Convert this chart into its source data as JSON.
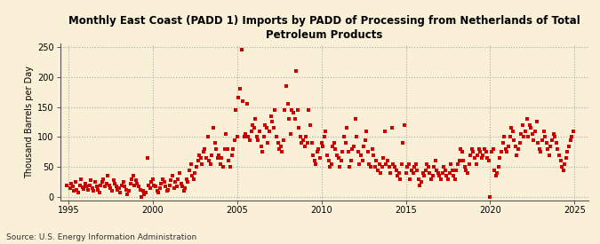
{
  "title": "Monthly East Coast (PADD 1) Imports by PADD of Processing from Netherlands of Total\nPetroleum Products",
  "ylabel": "Thousand Barrels per Day",
  "source": "Source: U.S. Energy Information Administration",
  "background_color": "#faf0d7",
  "plot_bg_color": "#faf0d7",
  "marker_color": "#cc0000",
  "grid_color": "#aaaaaa",
  "xlim": [
    1994.5,
    2025.8
  ],
  "ylim": [
    -5,
    255
  ],
  "yticks": [
    0,
    50,
    100,
    150,
    200,
    250
  ],
  "xticks": [
    1995,
    2000,
    2005,
    2010,
    2015,
    2020,
    2025
  ],
  "x_data": [
    1994.92,
    1995.08,
    1995.17,
    1995.25,
    1995.33,
    1995.42,
    1995.5,
    1995.58,
    1995.67,
    1995.75,
    1995.83,
    1995.92,
    1996.0,
    1996.08,
    1996.17,
    1996.25,
    1996.33,
    1996.42,
    1996.5,
    1996.58,
    1996.67,
    1996.75,
    1996.83,
    1996.92,
    1997.0,
    1997.08,
    1997.17,
    1997.25,
    1997.33,
    1997.42,
    1997.5,
    1997.58,
    1997.67,
    1997.75,
    1997.83,
    1997.92,
    1998.0,
    1998.08,
    1998.17,
    1998.25,
    1998.33,
    1998.42,
    1998.5,
    1998.58,
    1998.67,
    1998.75,
    1998.83,
    1998.92,
    1999.0,
    1999.08,
    1999.17,
    1999.25,
    1999.33,
    1999.42,
    1999.5,
    1999.58,
    1999.67,
    1999.75,
    1999.83,
    1999.92,
    2000.0,
    2000.08,
    2000.17,
    2000.25,
    2000.33,
    2000.42,
    2000.5,
    2000.58,
    2000.67,
    2000.75,
    2000.83,
    2000.92,
    2001.0,
    2001.08,
    2001.17,
    2001.25,
    2001.33,
    2001.42,
    2001.5,
    2001.58,
    2001.67,
    2001.75,
    2001.83,
    2001.92,
    2002.0,
    2002.08,
    2002.17,
    2002.25,
    2002.33,
    2002.42,
    2002.5,
    2002.58,
    2002.67,
    2002.75,
    2002.83,
    2002.92,
    2003.0,
    2003.08,
    2003.17,
    2003.25,
    2003.33,
    2003.42,
    2003.5,
    2003.58,
    2003.67,
    2003.75,
    2003.83,
    2003.92,
    2004.0,
    2004.08,
    2004.17,
    2004.25,
    2004.33,
    2004.42,
    2004.5,
    2004.58,
    2004.67,
    2004.75,
    2004.83,
    2004.92,
    2005.0,
    2005.08,
    2005.17,
    2005.25,
    2005.33,
    2005.42,
    2005.5,
    2005.58,
    2005.67,
    2005.75,
    2005.83,
    2005.92,
    2006.0,
    2006.08,
    2006.17,
    2006.25,
    2006.33,
    2006.42,
    2006.5,
    2006.58,
    2006.67,
    2006.75,
    2006.83,
    2006.92,
    2007.0,
    2007.08,
    2007.17,
    2007.25,
    2007.33,
    2007.42,
    2007.5,
    2007.58,
    2007.67,
    2007.75,
    2007.83,
    2007.92,
    2008.0,
    2008.08,
    2008.17,
    2008.25,
    2008.33,
    2008.42,
    2008.5,
    2008.58,
    2008.67,
    2008.75,
    2008.83,
    2008.92,
    2009.0,
    2009.08,
    2009.17,
    2009.25,
    2009.33,
    2009.42,
    2009.5,
    2009.58,
    2009.67,
    2009.75,
    2009.83,
    2009.92,
    2010.0,
    2010.08,
    2010.17,
    2010.25,
    2010.33,
    2010.42,
    2010.5,
    2010.58,
    2010.67,
    2010.75,
    2010.83,
    2010.92,
    2011.0,
    2011.08,
    2011.17,
    2011.25,
    2011.33,
    2011.42,
    2011.5,
    2011.58,
    2011.67,
    2011.75,
    2011.83,
    2011.92,
    2012.0,
    2012.08,
    2012.17,
    2012.25,
    2012.33,
    2012.42,
    2012.5,
    2012.58,
    2012.67,
    2012.75,
    2012.83,
    2012.92,
    2013.0,
    2013.08,
    2013.17,
    2013.25,
    2013.33,
    2013.42,
    2013.5,
    2013.58,
    2013.67,
    2013.75,
    2013.83,
    2013.92,
    2014.0,
    2014.08,
    2014.17,
    2014.25,
    2014.33,
    2014.42,
    2014.5,
    2014.58,
    2014.67,
    2014.75,
    2014.83,
    2014.92,
    2015.0,
    2015.08,
    2015.17,
    2015.25,
    2015.33,
    2015.42,
    2015.5,
    2015.58,
    2015.67,
    2015.75,
    2015.83,
    2015.92,
    2016.0,
    2016.08,
    2016.17,
    2016.25,
    2016.33,
    2016.42,
    2016.5,
    2016.58,
    2016.67,
    2016.75,
    2016.83,
    2016.92,
    2017.0,
    2017.08,
    2017.17,
    2017.25,
    2017.33,
    2017.42,
    2017.5,
    2017.58,
    2017.67,
    2017.75,
    2017.83,
    2017.92,
    2018.0,
    2018.08,
    2018.17,
    2018.25,
    2018.33,
    2018.42,
    2018.5,
    2018.58,
    2018.67,
    2018.75,
    2018.83,
    2018.92,
    2019.0,
    2019.08,
    2019.17,
    2019.25,
    2019.33,
    2019.42,
    2019.5,
    2019.58,
    2019.67,
    2019.75,
    2019.83,
    2019.92,
    2020.0,
    2020.08,
    2020.17,
    2020.25,
    2020.33,
    2020.42,
    2020.5,
    2020.58,
    2020.67,
    2020.75,
    2020.83,
    2020.92,
    2021.0,
    2021.08,
    2021.17,
    2021.25,
    2021.33,
    2021.42,
    2021.5,
    2021.58,
    2021.67,
    2021.75,
    2021.83,
    2021.92,
    2022.0,
    2022.08,
    2022.17,
    2022.25,
    2022.33,
    2022.42,
    2022.5,
    2022.58,
    2022.67,
    2022.75,
    2022.83,
    2022.92,
    2023.0,
    2023.08,
    2023.17,
    2023.25,
    2023.33,
    2023.42,
    2023.5,
    2023.58,
    2023.67,
    2023.75,
    2023.83,
    2023.92,
    2024.0,
    2024.08,
    2024.17,
    2024.25,
    2024.33,
    2024.42,
    2024.5,
    2024.58,
    2024.67,
    2024.75,
    2024.83,
    2024.92
  ],
  "y_data": [
    20,
    15,
    22,
    18,
    10,
    25,
    12,
    8,
    20,
    30,
    16,
    14,
    22,
    18,
    12,
    20,
    28,
    15,
    10,
    25,
    18,
    12,
    8,
    20,
    25,
    30,
    18,
    22,
    35,
    20,
    15,
    10,
    28,
    22,
    18,
    12,
    15,
    8,
    20,
    25,
    18,
    12,
    5,
    10,
    22,
    30,
    35,
    20,
    28,
    22,
    18,
    12,
    0,
    10,
    5,
    8,
    65,
    20,
    15,
    25,
    30,
    20,
    18,
    10,
    8,
    15,
    22,
    30,
    25,
    18,
    10,
    12,
    20,
    28,
    35,
    15,
    25,
    18,
    30,
    40,
    22,
    18,
    10,
    15,
    30,
    25,
    45,
    55,
    35,
    30,
    40,
    50,
    60,
    70,
    65,
    55,
    75,
    80,
    65,
    100,
    60,
    55,
    70,
    115,
    90,
    80,
    65,
    70,
    55,
    65,
    50,
    80,
    105,
    80,
    60,
    50,
    70,
    80,
    95,
    145,
    100,
    165,
    180,
    245,
    160,
    100,
    105,
    155,
    100,
    95,
    110,
    120,
    115,
    130,
    100,
    95,
    110,
    85,
    75,
    100,
    120,
    115,
    90,
    110,
    135,
    125,
    115,
    145,
    100,
    90,
    80,
    85,
    75,
    95,
    145,
    185,
    155,
    130,
    105,
    145,
    140,
    130,
    210,
    145,
    115,
    100,
    90,
    95,
    85,
    100,
    90,
    145,
    120,
    90,
    70,
    60,
    55,
    75,
    80,
    65,
    90,
    85,
    100,
    110,
    70,
    60,
    50,
    55,
    85,
    90,
    80,
    70,
    65,
    50,
    60,
    75,
    100,
    90,
    115,
    75,
    50,
    60,
    80,
    85,
    130,
    100,
    75,
    55,
    70,
    60,
    85,
    95,
    110,
    75,
    55,
    50,
    80,
    70,
    50,
    60,
    45,
    55,
    40,
    50,
    65,
    110,
    55,
    60,
    50,
    40,
    115,
    55,
    50,
    45,
    35,
    40,
    30,
    55,
    90,
    120,
    40,
    50,
    55,
    30,
    45,
    40,
    50,
    55,
    45,
    30,
    20,
    25,
    40,
    35,
    45,
    55,
    50,
    40,
    30,
    35,
    50,
    60,
    45,
    40,
    35,
    30,
    40,
    50,
    45,
    35,
    30,
    40,
    55,
    45,
    35,
    30,
    45,
    55,
    60,
    80,
    75,
    60,
    50,
    45,
    40,
    55,
    70,
    80,
    75,
    65,
    55,
    70,
    80,
    75,
    65,
    70,
    80,
    75,
    65,
    60,
    0,
    75,
    80,
    45,
    35,
    40,
    50,
    65,
    75,
    90,
    100,
    80,
    75,
    85,
    100,
    115,
    110,
    95,
    85,
    70,
    80,
    90,
    105,
    120,
    100,
    110,
    130,
    100,
    120,
    115,
    105,
    95,
    110,
    125,
    90,
    80,
    75,
    95,
    110,
    100,
    90,
    80,
    70,
    85,
    95,
    105,
    100,
    90,
    80,
    70,
    60,
    50,
    45,
    55,
    65,
    75,
    85,
    95,
    100,
    110
  ]
}
